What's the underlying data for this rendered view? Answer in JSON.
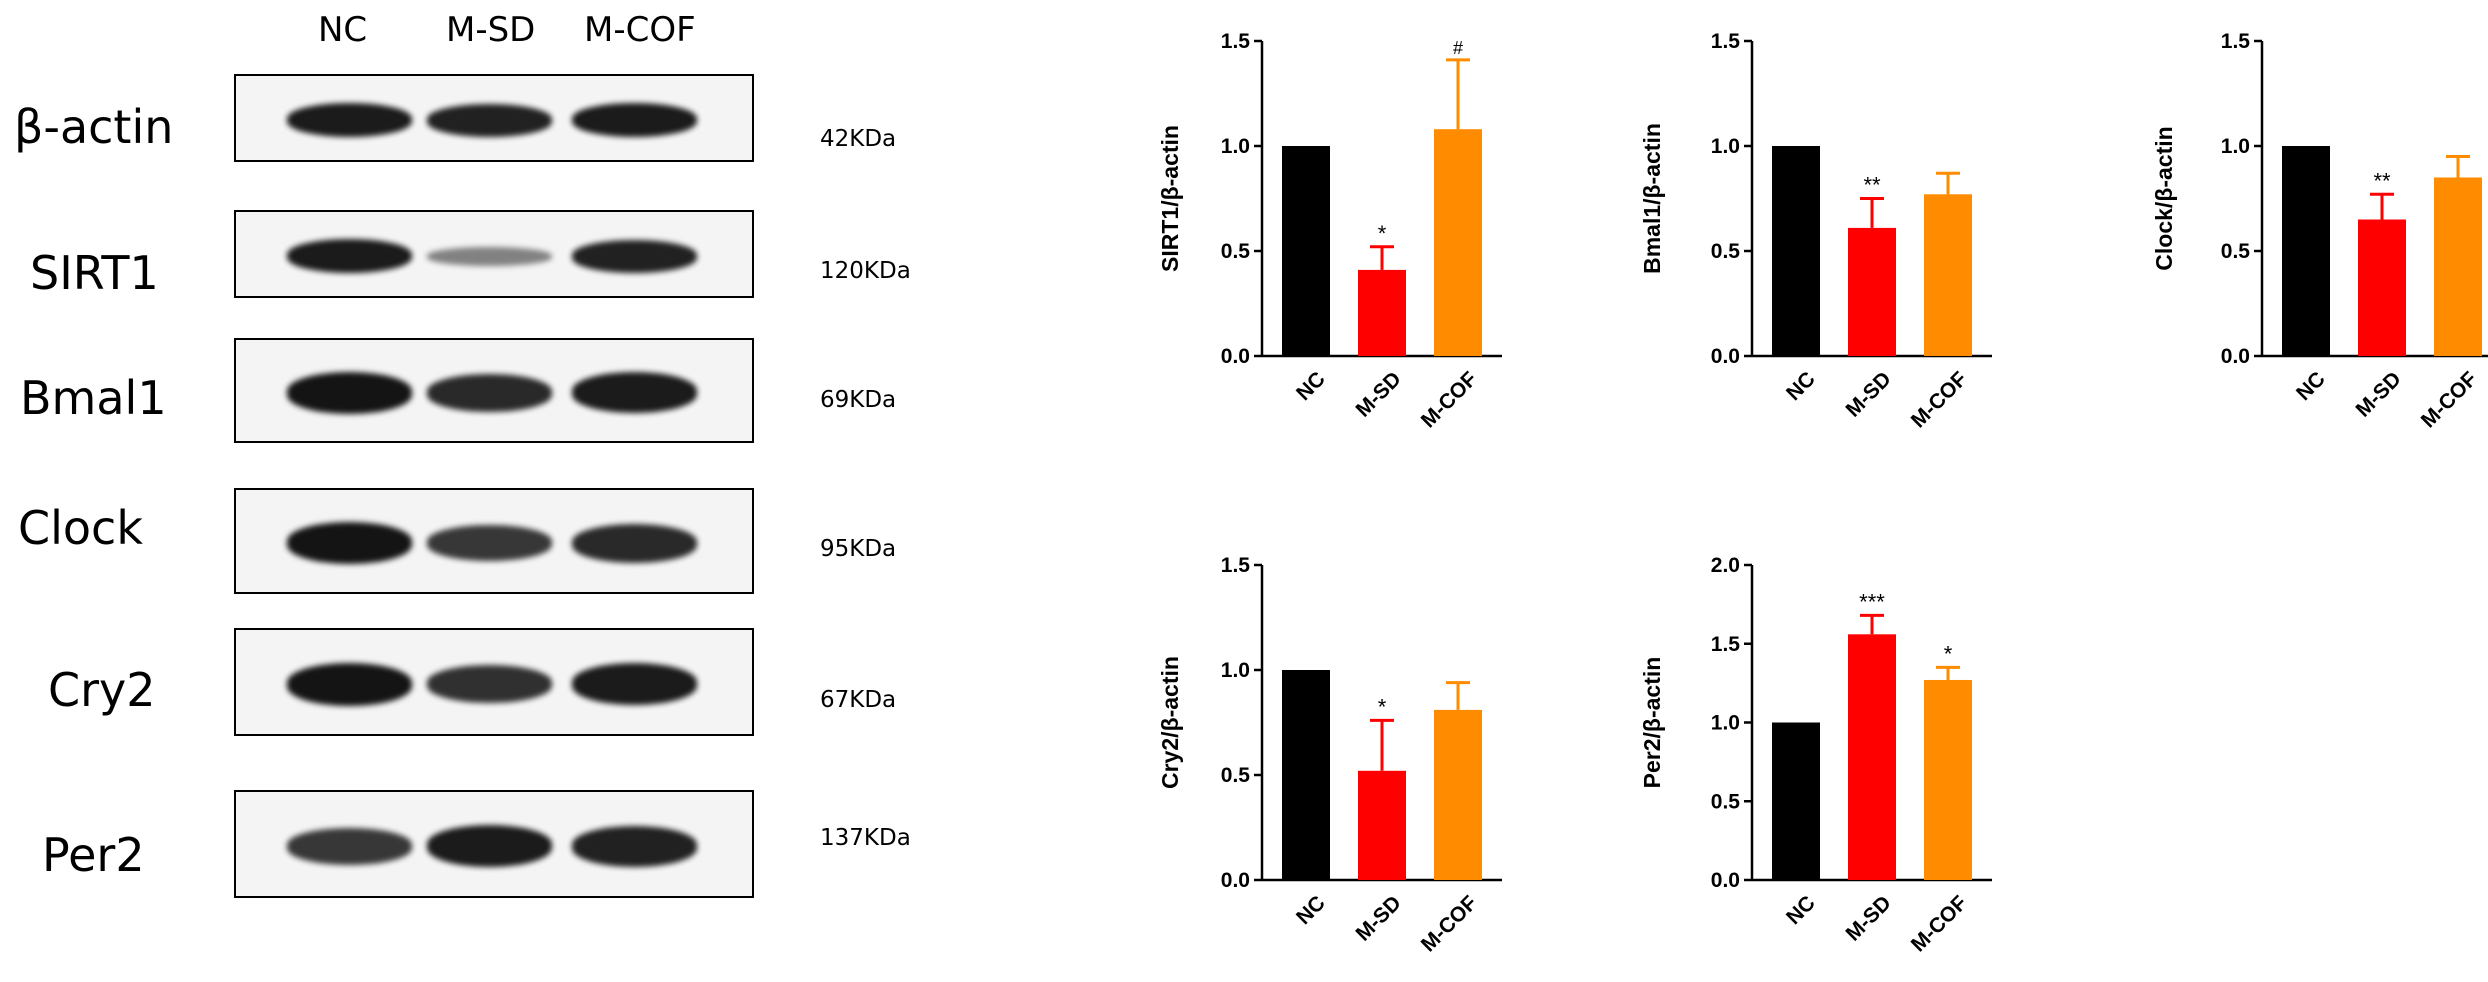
{
  "western_blot": {
    "lanes": [
      "NC",
      "M-SD",
      "M-COF"
    ],
    "rows": [
      {
        "protein": "β-actin",
        "kda": "42KDa",
        "intensity": [
          0.95,
          0.9,
          0.95
        ]
      },
      {
        "protein": "SIRT1",
        "kda": "120KDa",
        "intensity": [
          0.95,
          0.25,
          0.9
        ]
      },
      {
        "protein": "Bmal1",
        "kda": "69KDa",
        "intensity": [
          1.0,
          0.85,
          0.95
        ]
      },
      {
        "protein": "Clock",
        "kda": "95KDa",
        "intensity": [
          1.0,
          0.75,
          0.85
        ]
      },
      {
        "protein": "Cry2",
        "kda": "67KDa",
        "intensity": [
          1.0,
          0.8,
          0.95
        ]
      },
      {
        "protein": "Per2",
        "kda": "137KDa",
        "intensity": [
          0.75,
          0.95,
          0.9
        ]
      }
    ]
  },
  "chart_data": [
    {
      "type": "bar",
      "categories": [
        "NC",
        "M-SD",
        "M-COF"
      ],
      "values": [
        1.0,
        0.41,
        1.08
      ],
      "errors": [
        0,
        0.11,
        0.33
      ],
      "annotations": [
        "",
        "*",
        "#"
      ],
      "ylabel": "SIRT1/β-actin",
      "ylim": [
        0,
        1.5
      ],
      "yticks": [
        "0.0",
        "0.5",
        "1.0",
        "1.5"
      ],
      "colors": [
        "#000000",
        "#ff0000",
        "#ff8c00"
      ]
    },
    {
      "type": "bar",
      "categories": [
        "NC",
        "M-SD",
        "M-COF"
      ],
      "values": [
        1.0,
        0.61,
        0.77
      ],
      "errors": [
        0,
        0.14,
        0.1
      ],
      "annotations": [
        "",
        "**",
        ""
      ],
      "ylabel": "Bmal1/β-actin",
      "ylim": [
        0,
        1.5
      ],
      "yticks": [
        "0.0",
        "0.5",
        "1.0",
        "1.5"
      ],
      "colors": [
        "#000000",
        "#ff0000",
        "#ff8c00"
      ]
    },
    {
      "type": "bar",
      "categories": [
        "NC",
        "M-SD",
        "M-COF"
      ],
      "values": [
        1.0,
        0.65,
        0.85
      ],
      "errors": [
        0,
        0.12,
        0.1
      ],
      "annotations": [
        "",
        "**",
        ""
      ],
      "ylabel": "Clock/β-actin",
      "ylim": [
        0,
        1.5
      ],
      "yticks": [
        "0.0",
        "0.5",
        "1.0",
        "1.5"
      ],
      "colors": [
        "#000000",
        "#ff0000",
        "#ff8c00"
      ]
    },
    {
      "type": "bar",
      "categories": [
        "NC",
        "M-SD",
        "M-COF"
      ],
      "values": [
        1.0,
        0.52,
        0.81
      ],
      "errors": [
        0,
        0.24,
        0.13
      ],
      "annotations": [
        "",
        "*",
        ""
      ],
      "ylabel": "Cry2/β-actin",
      "ylim": [
        0,
        1.5
      ],
      "yticks": [
        "0.0",
        "0.5",
        "1.0",
        "1.5"
      ],
      "colors": [
        "#000000",
        "#ff0000",
        "#ff8c00"
      ]
    },
    {
      "type": "bar",
      "categories": [
        "NC",
        "M-SD",
        "M-COF"
      ],
      "values": [
        1.0,
        1.56,
        1.27
      ],
      "errors": [
        0,
        0.12,
        0.08
      ],
      "annotations": [
        "",
        "***",
        "*"
      ],
      "ylabel": "Per2/β-actin",
      "ylim": [
        0,
        2.0
      ],
      "yticks": [
        "0.0",
        "0.5",
        "1.0",
        "1.5",
        "2.0"
      ],
      "colors": [
        "#000000",
        "#ff0000",
        "#ff8c00"
      ]
    }
  ]
}
